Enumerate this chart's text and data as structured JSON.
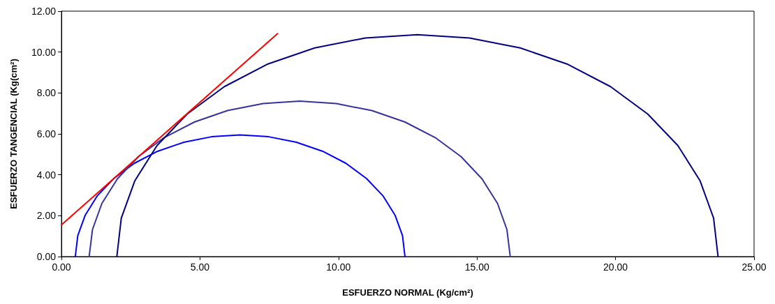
{
  "chart_data": {
    "type": "line",
    "xlabel": "ESFUERZO NORMAL (Kg/cm²)",
    "ylabel": "ESFUERZO TANGENCIAL (Kg(cm²)",
    "xlim": [
      0,
      25
    ],
    "ylim": [
      0,
      12
    ],
    "xticks": [
      {
        "value": 0,
        "label": "0.00"
      },
      {
        "value": 5,
        "label": "5.00"
      },
      {
        "value": 10,
        "label": "10.00"
      },
      {
        "value": 15,
        "label": "15.00"
      },
      {
        "value": 20,
        "label": "20.00"
      },
      {
        "value": 25,
        "label": "25.00"
      }
    ],
    "yticks": [
      {
        "value": 0,
        "label": "0.00"
      },
      {
        "value": 2,
        "label": "2.00"
      },
      {
        "value": 4,
        "label": "4.00"
      },
      {
        "value": 6,
        "label": "6.00"
      },
      {
        "value": 8,
        "label": "8.00"
      },
      {
        "value": 10,
        "label": "10.00"
      },
      {
        "value": 12,
        "label": "12.00"
      }
    ],
    "grid": false,
    "marker": "none",
    "line_style": "solid",
    "series": [
      {
        "color": "#0000ff",
        "x": [
          0.5,
          0.59,
          0.86,
          1.3,
          1.89,
          2.63,
          3.47,
          4.42,
          5.42,
          6.45,
          7.48,
          8.48,
          9.43,
          10.27,
          11.01,
          11.6,
          12.04,
          12.31,
          12.4
        ],
        "values": [
          0,
          1.03,
          2.03,
          2.98,
          3.82,
          4.56,
          5.15,
          5.59,
          5.86,
          5.95,
          5.86,
          5.59,
          5.15,
          4.56,
          3.82,
          2.98,
          2.03,
          1.03,
          0
        ]
      },
      {
        "color": "#333399",
        "x": [
          1.0,
          1.12,
          1.46,
          2.02,
          2.78,
          3.71,
          4.8,
          6.0,
          7.28,
          8.6,
          9.92,
          11.2,
          12.4,
          13.49,
          14.42,
          15.18,
          15.74,
          16.08,
          16.2
        ],
        "values": [
          0,
          1.32,
          2.6,
          3.8,
          4.89,
          5.82,
          6.58,
          7.14,
          7.48,
          7.6,
          7.48,
          7.14,
          6.58,
          5.82,
          4.89,
          3.8,
          2.6,
          1.32,
          0
        ]
      },
      {
        "color": "#000080",
        "x": [
          2.0,
          2.16,
          2.65,
          3.45,
          4.54,
          5.88,
          7.42,
          9.14,
          10.97,
          12.85,
          14.73,
          16.56,
          18.28,
          19.82,
          21.16,
          22.25,
          23.05,
          23.54,
          23.7
        ],
        "values": [
          0,
          1.88,
          3.71,
          5.43,
          6.97,
          8.31,
          9.4,
          10.2,
          10.69,
          10.85,
          10.69,
          10.2,
          9.4,
          8.31,
          6.97,
          5.43,
          3.71,
          1.88,
          0
        ]
      },
      {
        "color": "#ff0000",
        "x": [
          0,
          7.8
        ],
        "values": [
          1.55,
          10.9
        ]
      }
    ]
  }
}
